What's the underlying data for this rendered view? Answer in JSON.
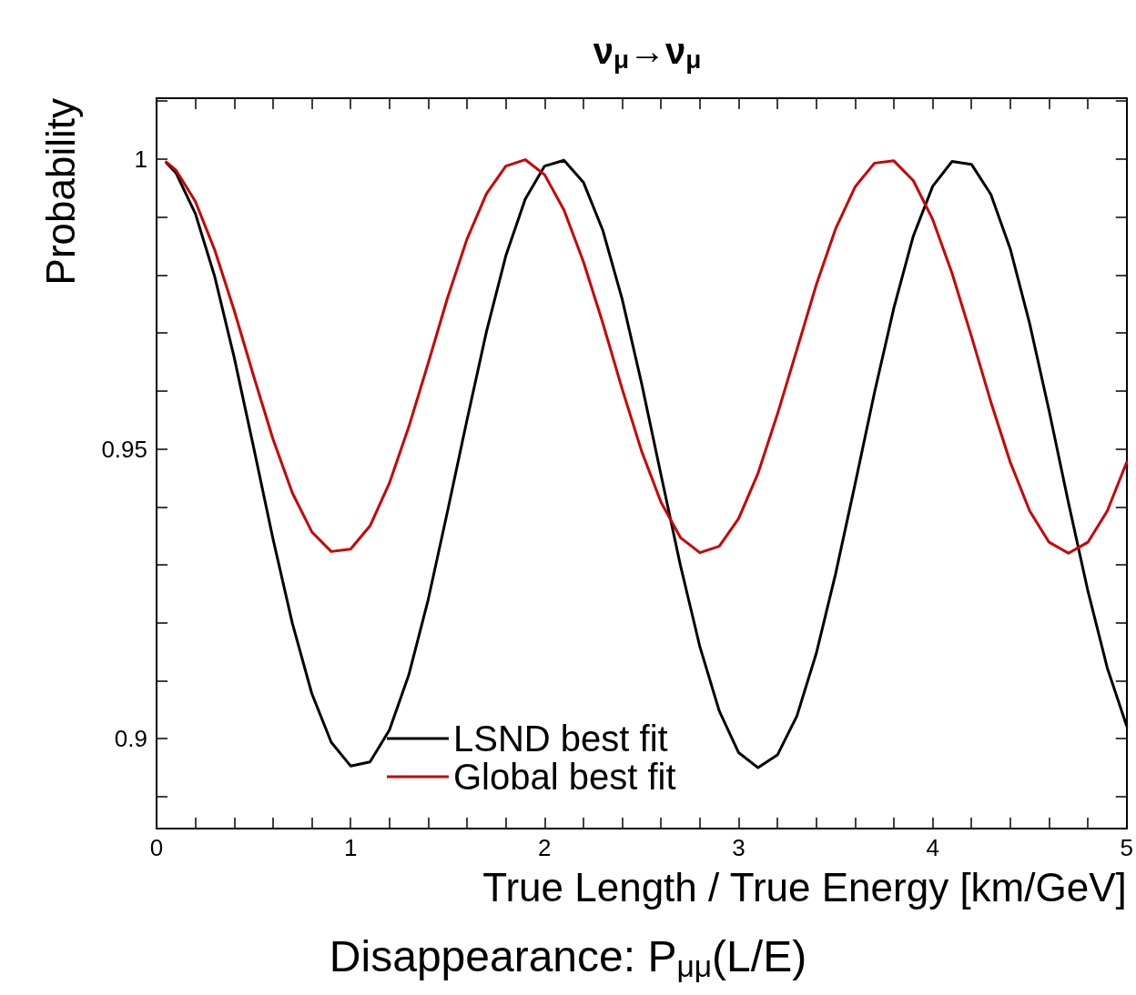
{
  "chart_data": {
    "type": "line",
    "title": "ν$_{μ}$→ν$_{μ}$",
    "xlabel": "True Length / True Energy [km/GeV]",
    "ylabel": "Probability",
    "annotations": [
      "Disappearance: P$_{μμ}$(L/E)"
    ],
    "xlim": [
      0,
      5
    ],
    "ylim": [
      0.8845,
      1.0105
    ],
    "xticks": [
      0,
      {
        "value": 0.2,
        "label": null
      },
      {
        "value": 0.4,
        "label": null
      },
      {
        "value": 0.6,
        "label": null
      },
      {
        "value": 0.8,
        "label": null
      },
      1,
      {
        "value": 1.2,
        "label": null
      },
      {
        "value": 1.4,
        "label": null
      },
      {
        "value": 1.6,
        "label": null
      },
      {
        "value": 1.8,
        "label": null
      },
      2,
      {
        "value": 2.2,
        "label": null
      },
      {
        "value": 2.4,
        "label": null
      },
      {
        "value": 2.6,
        "label": null
      },
      {
        "value": 2.8,
        "label": null
      },
      3,
      {
        "value": 3.2,
        "label": null
      },
      {
        "value": 3.4,
        "label": null
      },
      {
        "value": 3.6,
        "label": null
      },
      {
        "value": 3.8,
        "label": null
      },
      4,
      {
        "value": 4.2,
        "label": null
      },
      {
        "value": 4.4,
        "label": null
      },
      {
        "value": 4.6,
        "label": null
      },
      {
        "value": 4.8,
        "label": null
      },
      5
    ],
    "yticks": [
      {
        "value": 0.89,
        "label": null
      },
      0.9,
      {
        "value": 0.91,
        "label": null
      },
      {
        "value": 0.92,
        "label": null
      },
      {
        "value": 0.93,
        "label": null
      },
      {
        "value": 0.94,
        "label": null
      },
      0.95,
      {
        "value": 0.96,
        "label": null
      },
      {
        "value": 0.97,
        "label": null
      },
      {
        "value": 0.98,
        "label": null
      },
      {
        "value": 0.99,
        "label": null
      },
      {
        "value": 1,
        "label": "1"
      },
      {
        "value": 1.01,
        "label": null
      }
    ],
    "x": [
      0.05,
      0.1,
      0.2,
      0.3,
      0.4,
      0.5,
      0.6,
      0.7,
      0.8,
      0.9,
      1.0,
      1.1,
      1.2,
      1.3,
      1.4,
      1.5,
      1.6,
      1.7,
      1.8,
      1.9,
      2.0,
      2.1,
      2.2,
      2.3,
      2.4,
      2.5,
      2.6,
      2.7,
      2.8,
      2.9,
      3.0,
      3.1,
      3.2,
      3.3,
      3.4,
      3.5,
      3.6,
      3.7,
      3.8,
      3.9,
      4.0,
      4.1,
      4.2,
      4.3,
      4.4,
      4.5,
      4.6,
      4.7,
      4.8,
      4.9,
      5.0
    ],
    "series": [
      {
        "name": "LSND best fit",
        "color": "#000000",
        "values": [
          0.9994,
          0.9976,
          0.9906,
          0.9797,
          0.9658,
          0.9503,
          0.9345,
          0.9199,
          0.9078,
          0.8994,
          0.8953,
          0.896,
          0.9015,
          0.911,
          0.924,
          0.9393,
          0.955,
          0.9702,
          0.9833,
          0.9931,
          0.9988,
          0.9998,
          0.996,
          0.9877,
          0.9758,
          0.9613,
          0.9455,
          0.9299,
          0.9159,
          0.9048,
          0.8976,
          0.895,
          0.8972,
          0.9039,
          0.9147,
          0.9285,
          0.9439,
          0.9597,
          0.9743,
          0.9867,
          0.9953,
          0.9996,
          0.9991,
          0.9939,
          0.9845,
          0.9716,
          0.9566,
          0.9407,
          0.9255,
          0.9122,
          0.9022
        ]
      },
      {
        "name": "Global best fit",
        "color": "#cc0000",
        "values": [
          0.9995,
          0.9981,
          0.9927,
          0.9843,
          0.9739,
          0.9626,
          0.9517,
          0.9424,
          0.9357,
          0.9323,
          0.9327,
          0.9367,
          0.9441,
          0.9538,
          0.9648,
          0.9761,
          0.9862,
          0.994,
          0.9988,
          0.9999,
          0.9973,
          0.9912,
          0.9823,
          0.9717,
          0.9603,
          0.9496,
          0.9408,
          0.9347,
          0.9321,
          0.9332,
          0.938,
          0.9458,
          0.956,
          0.9671,
          0.9783,
          0.988,
          0.9952,
          0.9993,
          0.9997,
          0.9963,
          0.9896,
          0.9803,
          0.9694,
          0.9581,
          0.9477,
          0.9393,
          0.9339,
          0.932,
          0.9339,
          0.9393,
          0.9477
        ]
      }
    ],
    "legend": "bottom",
    "marker": "none",
    "line_style": "solid",
    "grid": false
  }
}
